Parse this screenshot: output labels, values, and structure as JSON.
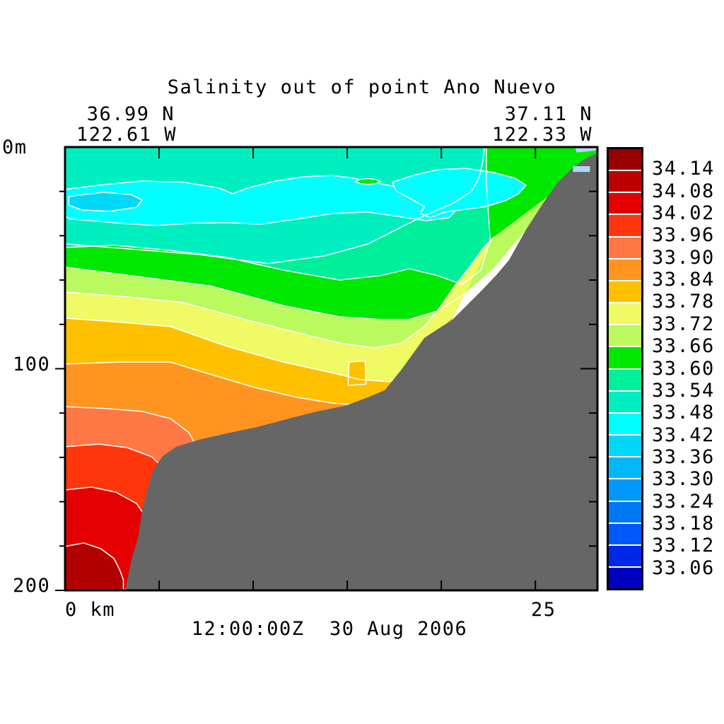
{
  "header": {
    "title": "Salinity out of point Ano Nuevo",
    "left_lat": "36.99 N",
    "left_lon": "122.61 W",
    "right_lat": "37.11 N",
    "right_lon": "122.33 W"
  },
  "axis_labels": {
    "depth_top": "0m",
    "depth_mid": "100",
    "depth_bottom": "200",
    "x_left": "0 km",
    "x_right": "25"
  },
  "caption": "12:00:00Z  30 Aug 2006",
  "colorbar": {
    "labels": [
      "34.14",
      "34.08",
      "34.02",
      "33.96",
      "33.90",
      "33.84",
      "33.78",
      "33.72",
      "33.66",
      "33.60",
      "33.54",
      "33.48",
      "33.42",
      "33.36",
      "33.30",
      "33.24",
      "33.18",
      "33.12",
      "33.06"
    ],
    "colors": [
      "#980000",
      "#BC0000",
      "#E40000",
      "#FF360C",
      "#FF7845",
      "#FF9420",
      "#FFC000",
      "#EFFA64",
      "#BAFA5E",
      "#00E800",
      "#00EF9A",
      "#00EFC0",
      "#00FFFF",
      "#00D8F8",
      "#00B8F8",
      "#0098F8",
      "#0078F8",
      "#0058F8",
      "#0028E8",
      "#0000C0"
    ]
  },
  "chart_data": {
    "type": "filled_contour_section",
    "title": "Salinity out of point Ano Nuevo",
    "time_label": "12:00:00Z  30 Aug 2006",
    "x_axis": {
      "label": "km",
      "range": [
        0,
        28.3
      ],
      "ticks": [
        5,
        10,
        15,
        20,
        25
      ],
      "left_endpoint": {
        "lat": "36.99 N",
        "lon": "122.61 W"
      },
      "right_endpoint": {
        "lat": "37.11 N",
        "lon": "122.33 W"
      }
    },
    "y_axis": {
      "label": "depth m",
      "range": [
        0,
        200
      ],
      "minor_ticks": [
        20,
        40,
        60,
        80,
        120,
        140,
        160,
        180
      ],
      "major_ticks": [
        100,
        200
      ]
    },
    "levels": [
      33.06,
      33.12,
      33.18,
      33.24,
      33.3,
      33.36,
      33.42,
      33.48,
      33.54,
      33.6,
      33.66,
      33.72,
      33.78,
      33.84,
      33.9,
      33.96,
      34.02,
      34.08,
      34.14
    ],
    "contour_line_color": "#FFFFFF",
    "land_color": "#666666",
    "missing_color": "#B0D8F4",
    "bands": [
      {
        "label": "33.48-33.54",
        "color": "#00EFC0"
      },
      {
        "label": "33.54-33.60",
        "color": "#00EF9A"
      },
      {
        "label": "33.60-33.66",
        "color": "#00E800"
      },
      {
        "label": "33.66-33.72",
        "color": "#BAFA5E"
      },
      {
        "label": "33.72-33.78",
        "color": "#EFFA64"
      },
      {
        "label": "33.78-33.84",
        "color": "#FFC000"
      },
      {
        "label": "33.84-33.90",
        "color": "#FF9420"
      },
      {
        "label": "33.90-33.96",
        "color": "#FF7845"
      },
      {
        "label": "33.96-34.02",
        "color": "#FF360C"
      },
      {
        "label": "34.02-34.08",
        "color": "#E40000"
      },
      {
        "label": "34.08-34.14",
        "color": "#B00000"
      }
    ],
    "geometry": {
      "units": "x in km from shore-opposite end, y in metres depth",
      "boundaries": [
        {
          "level": 33.54,
          "pts": [
            [
              0,
              43.7
            ],
            [
              3.3,
              45.9
            ],
            [
              7.1,
              48.5
            ],
            [
              10.8,
              52.6
            ],
            [
              13.8,
              49.1
            ],
            [
              16.1,
              43.7
            ],
            [
              17.6,
              37.3
            ],
            [
              19.1,
              30.9
            ],
            [
              20.6,
              25.5
            ],
            [
              21.6,
              20
            ],
            [
              22,
              14
            ],
            [
              22.2,
              7
            ],
            [
              22.3,
              0
            ]
          ]
        },
        {
          "level": 33.6,
          "pts": [
            [
              0,
              45.3
            ],
            [
              2.6,
              44.3
            ],
            [
              5.6,
              46.6
            ],
            [
              8.6,
              49.8
            ],
            [
              11.6,
              55.5
            ],
            [
              14.6,
              60
            ],
            [
              16.8,
              58
            ],
            [
              18.3,
              54.9
            ],
            [
              19.8,
              58
            ],
            [
              21.1,
              61.9
            ],
            [
              22.1,
              55.5
            ],
            [
              22.6,
              42.1
            ],
            [
              22.5,
              29.3
            ],
            [
              22.4,
              16.6
            ],
            [
              22.4,
              8
            ],
            [
              22.4,
              0
            ]
          ]
        },
        {
          "level": 33.66,
          "pts": [
            [
              0,
              54.2
            ],
            [
              4.1,
              58.7
            ],
            [
              7.8,
              62.8
            ],
            [
              11.6,
              71.5
            ],
            [
              14.6,
              76.6
            ],
            [
              16.8,
              77.8
            ],
            [
              18.3,
              77.8
            ],
            [
              19.8,
              74
            ],
            [
              21.3,
              66
            ],
            [
              22.8,
              54.9
            ],
            [
              23.9,
              43.7
            ],
            [
              24.9,
              34.1
            ],
            [
              25.5,
              29.3
            ],
            [
              26,
              22
            ],
            [
              26.5,
              17
            ]
          ]
        },
        {
          "level": 33.72,
          "pts": [
            [
              0,
              65.4
            ],
            [
              3.3,
              67.6
            ],
            [
              6.3,
              70.2
            ],
            [
              9.3,
              77.2
            ],
            [
              12.3,
              83.6
            ],
            [
              14.6,
              88.4
            ],
            [
              16.4,
              90.6
            ],
            [
              17.9,
              88.4
            ],
            [
              19.1,
              81
            ],
            [
              20,
              71.5
            ],
            [
              20.7,
              62.8
            ],
            [
              21.5,
              54.2
            ],
            [
              22.2,
              45.9
            ],
            [
              22.8,
              40.5
            ]
          ]
        },
        {
          "level": 33.78,
          "pts": [
            [
              0,
              77.2
            ],
            [
              2.6,
              78.8
            ],
            [
              5.6,
              81
            ],
            [
              8.6,
              89.9
            ],
            [
              11.6,
              97
            ],
            [
              13.8,
              101.1
            ],
            [
              15.7,
              104.9
            ],
            [
              17.2,
              105.9
            ],
            [
              18.3,
              102.7
            ],
            [
              19.2,
              95.7
            ],
            [
              20,
              86.8
            ],
            [
              20.5,
              79.7
            ],
            [
              20.7,
              75.6
            ]
          ]
        },
        {
          "level": 33.84,
          "pts": [
            [
              0,
              97.9
            ],
            [
              2.9,
              97
            ],
            [
              5.6,
              97
            ],
            [
              7.8,
              102.7
            ],
            [
              10.1,
              108.5
            ],
            [
              12.3,
              112.9
            ],
            [
              14.2,
              115.5
            ],
            [
              15.7,
              116.4
            ],
            [
              17,
              114.5
            ]
          ]
        },
        {
          "level": 33.9,
          "pts": [
            [
              0,
              117.1
            ],
            [
              2.2,
              118
            ],
            [
              4.1,
              119.3
            ],
            [
              5.6,
              122.5
            ],
            [
              6.6,
              128.9
            ],
            [
              7.1,
              137.2
            ],
            [
              7.4,
              145.8
            ],
            [
              7.5,
              153.7
            ]
          ]
        },
        {
          "level": 33.96,
          "pts": [
            [
              0,
              135.2
            ],
            [
              1.8,
              134
            ],
            [
              3.3,
              135.6
            ],
            [
              4.6,
              139.7
            ],
            [
              5.4,
              146.1
            ],
            [
              5.7,
              154.4
            ],
            [
              5.9,
              162
            ],
            [
              5.7,
              170.3
            ]
          ]
        },
        {
          "level": 34.02,
          "pts": [
            [
              0,
              154.7
            ],
            [
              1.4,
              153.4
            ],
            [
              2.7,
              155.7
            ],
            [
              3.8,
              160.8
            ],
            [
              4.3,
              167.1
            ],
            [
              4.5,
              174.8
            ],
            [
              4.5,
              183.1
            ],
            [
              4.3,
              190.7
            ]
          ]
        },
        {
          "level": 34.08,
          "pts": [
            [
              0,
              180.2
            ],
            [
              1,
              178.6
            ],
            [
              1.9,
              181.2
            ],
            [
              2.6,
              185.6
            ],
            [
              2.9,
              190.7
            ],
            [
              3.1,
              195.2
            ],
            [
              3.1,
              200
            ]
          ]
        }
      ],
      "band_extras": {
        "2": [
          [
            28.3,
            0
          ],
          [
            28.3,
            6
          ]
        ]
      },
      "blobs": [
        {
          "name": "cyan-patch-west",
          "level": "33.42-33.48",
          "color": "#00FFFF",
          "pts": [
            [
              0,
              19.1
            ],
            [
              1.8,
              17.2
            ],
            [
              4.1,
              15.3
            ],
            [
              6.3,
              15.9
            ],
            [
              8.2,
              18.5
            ],
            [
              8.9,
              21.1
            ],
            [
              9.7,
              18.5
            ],
            [
              11.2,
              15.3
            ],
            [
              12.7,
              13.4
            ],
            [
              14.2,
              12.8
            ],
            [
              15.3,
              14
            ],
            [
              16.4,
              15.9
            ],
            [
              17.6,
              17.9
            ],
            [
              18.7,
              19.8
            ],
            [
              19.6,
              22.3
            ],
            [
              20.4,
              26.2
            ],
            [
              20.7,
              29.3
            ],
            [
              20.4,
              31.9
            ],
            [
              19.2,
              33.2
            ],
            [
              17.7,
              31.3
            ],
            [
              16.1,
              29.3
            ],
            [
              14.2,
              30
            ],
            [
              12.3,
              32.5
            ],
            [
              10.4,
              34.8
            ],
            [
              8.6,
              34.1
            ],
            [
              6.7,
              34.4
            ],
            [
              4.8,
              35.4
            ],
            [
              2.9,
              34.4
            ],
            [
              1.4,
              33.2
            ],
            [
              0.3,
              32.5
            ],
            [
              0,
              31.3
            ]
          ]
        },
        {
          "name": "fresh-core",
          "level": "33.36-33.42",
          "color": "#00D8F8",
          "pts": [
            [
              0.2,
              22.3
            ],
            [
              2,
              20.4
            ],
            [
              3.5,
              21.4
            ],
            [
              4.1,
              23.9
            ],
            [
              3.8,
              27.1
            ],
            [
              2.4,
              29
            ],
            [
              0.9,
              28.4
            ],
            [
              0.2,
              26.2
            ]
          ]
        },
        {
          "name": "cyan-patch-east",
          "level": "33.42-33.48",
          "color": "#00FFFF",
          "pts": [
            [
              17.4,
              15.9
            ],
            [
              18.5,
              12.8
            ],
            [
              19.8,
              10.2
            ],
            [
              21.3,
              9.6
            ],
            [
              22.8,
              11.5
            ],
            [
              23.9,
              14
            ],
            [
              24.5,
              17.2
            ],
            [
              24.1,
              21.1
            ],
            [
              23.4,
              24.2
            ],
            [
              22.4,
              26.8
            ],
            [
              21.3,
              28.1
            ],
            [
              20.2,
              29.3
            ],
            [
              19.4,
              31.9
            ],
            [
              18.9,
              30
            ],
            [
              19.1,
              26.8
            ],
            [
              18.3,
              23
            ],
            [
              17.6,
              19.8
            ]
          ]
        },
        {
          "name": "green-lens",
          "level": "33.60-33.66",
          "color": "#00E800",
          "pts": [
            [
              15.4,
              15.6
            ],
            [
              15.7,
              14.6
            ],
            [
              16.1,
              14.2
            ],
            [
              16.5,
              14.6
            ],
            [
              16.8,
              15.6
            ],
            [
              16.5,
              16.5
            ],
            [
              16.1,
              16.9
            ],
            [
              15.7,
              16.5
            ]
          ]
        },
        {
          "name": "amber-notch",
          "level": "33.78-33.84",
          "color": "#FFC000",
          "pts": [
            [
              15.1,
              97
            ],
            [
              15.95,
              96.5
            ],
            [
              16,
              107
            ],
            [
              15.05,
              107.5
            ]
          ]
        }
      ],
      "bathymetry": [
        [
          3.2,
          200
        ],
        [
          3.5,
          187.2
        ],
        [
          3.9,
          175.4
        ],
        [
          4.1,
          163.9
        ],
        [
          4.4,
          153.7
        ],
        [
          4.7,
          145.4
        ],
        [
          5.2,
          139.4
        ],
        [
          5.9,
          135.2
        ],
        [
          7.1,
          132.1
        ],
        [
          8.6,
          129.2
        ],
        [
          10.2,
          126.3
        ],
        [
          11.9,
          122.5
        ],
        [
          13.4,
          119.3
        ],
        [
          14.9,
          116.7
        ],
        [
          16.1,
          112.9
        ],
        [
          17,
          109.7
        ],
        [
          17.9,
          100.2
        ],
        [
          19.1,
          86.1
        ],
        [
          20.6,
          77.8
        ],
        [
          22.1,
          65.1
        ],
        [
          22.9,
          58
        ],
        [
          23.6,
          51
        ],
        [
          24.5,
          37.3
        ],
        [
          25.4,
          25.5
        ],
        [
          26.2,
          15.9
        ],
        [
          27,
          9.3
        ],
        [
          27.7,
          5.1
        ],
        [
          28.3,
          2.6
        ],
        [
          28.3,
          200
        ]
      ],
      "missing_patches": [
        {
          "name": "missing-top-edge",
          "pts": [
            [
              27.1,
              0
            ],
            [
              28.3,
              0
            ],
            [
              28.3,
              1.5
            ],
            [
              27.2,
              2.5
            ]
          ]
        },
        {
          "name": "missing-right-edge",
          "pts": [
            [
              27,
              8.6
            ],
            [
              27.9,
              8.6
            ],
            [
              27.9,
              11.2
            ],
            [
              27,
              11.2
            ]
          ]
        }
      ]
    }
  }
}
